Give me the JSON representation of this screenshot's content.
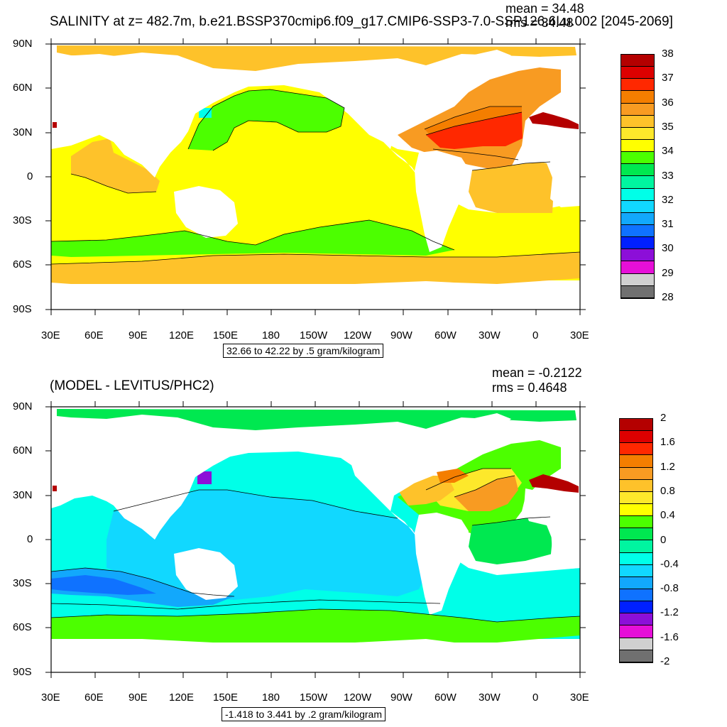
{
  "panel1": {
    "title": "SALINITY at z= 482.7m, b.e21.BSSP370cmip6.f09_g17.CMIP6-SSP3-7.0-SSP126.6Lu.002 [2045-2069]",
    "mean": "mean = 34.48",
    "rms": "rms = 34.48",
    "caption": "32.66 to 42.22 by .5 gram/kilogram",
    "colorbar_labels": [
      "38",
      "37",
      "36",
      "35",
      "34",
      "33",
      "32",
      "31",
      "30",
      "29",
      "28"
    ],
    "colorbar_colors": [
      "#b40000",
      "#dd0000",
      "#ff2800",
      "#f47e00",
      "#f89b22",
      "#fec22a",
      "#fde82b",
      "#ffff00",
      "#4cff00",
      "#00e850",
      "#00f5a0",
      "#00ffe8",
      "#11d8ff",
      "#12a8fc",
      "#0f72ff",
      "#0020ff",
      "#8c0fd8",
      "#e60fd8",
      "#d0d0d0",
      "#707070"
    ]
  },
  "panel2": {
    "title": "(MODEL - LEVITUS/PHC2)",
    "mean": "mean = -0.2122",
    "rms": "rms = 0.4648",
    "caption": "-1.418 to 3.441 by .2 gram/kilogram",
    "colorbar_labels": [
      "2",
      "1.6",
      "1.2",
      "0.8",
      "0.4",
      "0",
      "-0.4",
      "-0.8",
      "-1.2",
      "-1.6",
      "-2"
    ],
    "colorbar_colors": [
      "#b40000",
      "#dd0000",
      "#ff2800",
      "#f47e00",
      "#f89b22",
      "#fec22a",
      "#fde82b",
      "#ffff00",
      "#4cff00",
      "#00e850",
      "#00f5a0",
      "#00ffe8",
      "#11d8ff",
      "#12a8fc",
      "#0f72ff",
      "#0020ff",
      "#8c0fd8",
      "#e60fd8",
      "#d0d0d0",
      "#707070"
    ]
  },
  "axes": {
    "lon_labels": [
      "30E",
      "60E",
      "90E",
      "120E",
      "150E",
      "180",
      "150W",
      "120W",
      "90W",
      "60W",
      "30W",
      "0",
      "30E"
    ],
    "lat_labels": [
      "90N",
      "60N",
      "30N",
      "0",
      "30S",
      "60S",
      "90S"
    ]
  }
}
